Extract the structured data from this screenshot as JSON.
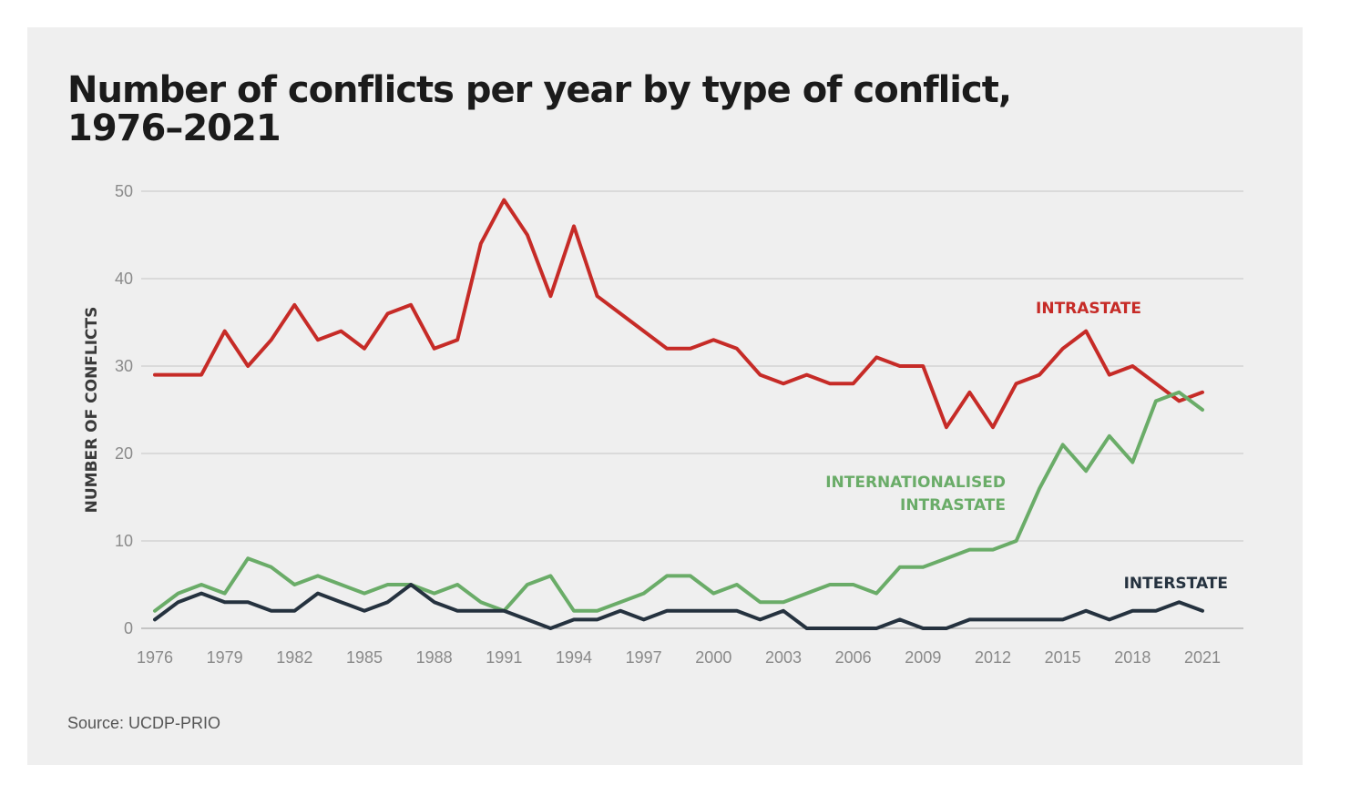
{
  "header": {
    "title_line1": "Number of conflicts per year by type of conflict,",
    "title_line2": "1976–2021"
  },
  "footer": {
    "source": "Source: UCDP-PRIO"
  },
  "chart_data": {
    "type": "line",
    "ylabel": "NUMBER OF CONFLICTS",
    "ylim": [
      0,
      50
    ],
    "yticks": [
      0,
      10,
      20,
      30,
      40,
      50
    ],
    "xlim": [
      1976,
      2021
    ],
    "xticks": [
      1976,
      1979,
      1982,
      1985,
      1988,
      1991,
      1994,
      1997,
      2000,
      2003,
      2006,
      2009,
      2012,
      2015,
      2018,
      2021
    ],
    "grid": true,
    "x": [
      1976,
      1977,
      1978,
      1979,
      1980,
      1981,
      1982,
      1983,
      1984,
      1985,
      1986,
      1987,
      1988,
      1989,
      1990,
      1991,
      1992,
      1993,
      1994,
      1995,
      1996,
      1997,
      1998,
      1999,
      2000,
      2001,
      2002,
      2003,
      2004,
      2005,
      2006,
      2007,
      2008,
      2009,
      2010,
      2011,
      2012,
      2013,
      2014,
      2015,
      2016,
      2017,
      2018,
      2019,
      2020,
      2021
    ],
    "series": [
      {
        "name": "INTRASTATE",
        "color": "#c62b27",
        "label_lines": [
          "INTRASTATE"
        ],
        "values": [
          29,
          29,
          29,
          34,
          30,
          33,
          37,
          33,
          34,
          32,
          36,
          37,
          32,
          33,
          44,
          49,
          45,
          38,
          46,
          38,
          36,
          34,
          32,
          32,
          33,
          32,
          29,
          28,
          29,
          28,
          28,
          31,
          30,
          30,
          23,
          27,
          23,
          28,
          29,
          32,
          34,
          29,
          30,
          28,
          26,
          27
        ]
      },
      {
        "name": "INTERNATIONALISED INTRASTATE",
        "color": "#6aac68",
        "label_lines": [
          "INTERNATIONALISED",
          "INTRASTATE"
        ],
        "values": [
          2,
          4,
          5,
          4,
          8,
          7,
          5,
          6,
          5,
          4,
          5,
          5,
          4,
          5,
          3,
          2,
          5,
          6,
          2,
          2,
          3,
          4,
          6,
          6,
          4,
          5,
          3,
          3,
          4,
          5,
          5,
          4,
          7,
          7,
          8,
          9,
          9,
          10,
          16,
          21,
          18,
          22,
          19,
          26,
          27,
          25
        ]
      },
      {
        "name": "INTERSTATE",
        "color": "#25323f",
        "label_lines": [
          "INTERSTATE"
        ],
        "values": [
          1,
          3,
          4,
          3,
          3,
          2,
          2,
          4,
          3,
          2,
          3,
          5,
          3,
          2,
          2,
          2,
          1,
          0,
          1,
          1,
          2,
          1,
          2,
          2,
          2,
          2,
          1,
          2,
          0,
          0,
          0,
          0,
          1,
          0,
          0,
          1,
          1,
          1,
          1,
          1,
          2,
          1,
          2,
          2,
          3,
          2
        ]
      }
    ]
  }
}
